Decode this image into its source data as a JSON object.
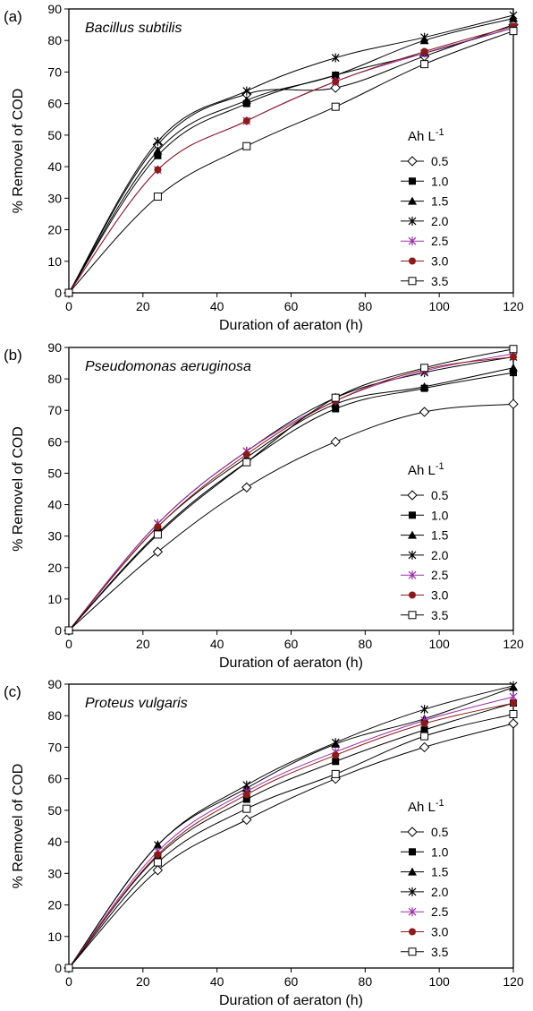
{
  "chart_data": [
    {
      "type": "line",
      "panel_label": "(a)",
      "subtitle": "Bacillus subtilis",
      "xlabel": "Duration of aeraton (h)",
      "ylabel": "% Removel of COD",
      "xlim": [
        0,
        120
      ],
      "ylim": [
        0,
        90
      ],
      "xticks": [
        "0",
        "20",
        "40",
        "60",
        "80",
        "100",
        "120"
      ],
      "yticks": [
        "0",
        "10",
        "20",
        "30",
        "40",
        "50",
        "60",
        "70",
        "80",
        "90"
      ],
      "legend_title": "Ah L",
      "legend_title_sup": "-1",
      "legend_position": "right",
      "x": [
        0,
        24,
        48,
        72,
        96,
        120
      ],
      "series": [
        {
          "name": "0.5",
          "marker": "diamond",
          "color": "#000000",
          "values": [
            0,
            47,
            63,
            65,
            75,
            85
          ]
        },
        {
          "name": "1.0",
          "marker": "square-filled",
          "color": "#000000",
          "values": [
            0,
            43.5,
            60,
            69,
            76,
            84
          ]
        },
        {
          "name": "1.5",
          "marker": "triangle",
          "color": "#000000",
          "values": [
            0,
            45,
            61,
            69,
            80,
            87
          ]
        },
        {
          "name": "2.0",
          "marker": "star",
          "color": "#000000",
          "values": [
            0,
            48,
            64,
            74.5,
            81,
            88
          ]
        },
        {
          "name": "2.5",
          "marker": "star",
          "color": "#9b30a8",
          "values": [
            0,
            39,
            54.5,
            67,
            76,
            84
          ]
        },
        {
          "name": "3.0",
          "marker": "circle",
          "color": "#8b1a1a",
          "values": [
            0,
            39,
            54.5,
            67,
            76.5,
            84.5
          ]
        },
        {
          "name": "3.5",
          "marker": "square-open",
          "color": "#000000",
          "values": [
            0,
            30.5,
            46.5,
            59,
            72.5,
            83
          ]
        }
      ]
    },
    {
      "type": "line",
      "panel_label": "(b)",
      "subtitle": "Pseudomonas aeruginosa",
      "xlabel": "Duration of aeraton (h)",
      "ylabel": "% Removel of COD",
      "xlim": [
        0,
        120
      ],
      "ylim": [
        0,
        90
      ],
      "xticks": [
        "0",
        "20",
        "40",
        "60",
        "80",
        "100",
        "120"
      ],
      "yticks": [
        "0",
        "10",
        "20",
        "30",
        "40",
        "50",
        "60",
        "70",
        "80",
        "90"
      ],
      "legend_title": "Ah L",
      "legend_title_sup": "-1",
      "legend_position": "right",
      "x": [
        0,
        24,
        48,
        72,
        96,
        120
      ],
      "series": [
        {
          "name": "0.5",
          "marker": "diamond",
          "color": "#000000",
          "values": [
            0,
            25,
            45.5,
            60,
            69.5,
            72
          ]
        },
        {
          "name": "1.0",
          "marker": "square-filled",
          "color": "#000000",
          "values": [
            0,
            31,
            53.5,
            70.5,
            77,
            82
          ]
        },
        {
          "name": "1.5",
          "marker": "triangle",
          "color": "#000000",
          "values": [
            0,
            33,
            55,
            72,
            77.5,
            83.5
          ]
        },
        {
          "name": "2.0",
          "marker": "star",
          "color": "#000000",
          "values": [
            0,
            34,
            57,
            74,
            82,
            87
          ]
        },
        {
          "name": "2.5",
          "marker": "star",
          "color": "#9b30a8",
          "values": [
            0,
            34,
            57,
            73,
            82.5,
            88
          ]
        },
        {
          "name": "3.0",
          "marker": "circle",
          "color": "#8b1a1a",
          "values": [
            0,
            33,
            56,
            73,
            83,
            87
          ]
        },
        {
          "name": "3.5",
          "marker": "square-open",
          "color": "#000000",
          "values": [
            0,
            30.5,
            53.5,
            74,
            83.5,
            89.5
          ]
        }
      ]
    },
    {
      "type": "line",
      "panel_label": "(c)",
      "subtitle": "Proteus vulgaris",
      "xlabel": "Duration of aeraton (h)",
      "ylabel": "% Removel of COD",
      "xlim": [
        0,
        120
      ],
      "ylim": [
        0,
        90
      ],
      "xticks": [
        "0",
        "20",
        "40",
        "60",
        "80",
        "100",
        "120"
      ],
      "yticks": [
        "0",
        "10",
        "20",
        "30",
        "40",
        "50",
        "60",
        "70",
        "80",
        "90"
      ],
      "legend_title": "Ah L",
      "legend_title_sup": "-1",
      "legend_position": "right",
      "x": [
        0,
        24,
        48,
        72,
        96,
        120
      ],
      "series": [
        {
          "name": "0.5",
          "marker": "diamond",
          "color": "#000000",
          "values": [
            0,
            31,
            47,
            60,
            70,
            77.5
          ]
        },
        {
          "name": "1.0",
          "marker": "square-filled",
          "color": "#000000",
          "values": [
            0,
            35.5,
            53.5,
            65.5,
            75.5,
            84
          ]
        },
        {
          "name": "1.5",
          "marker": "triangle",
          "color": "#000000",
          "values": [
            0,
            39,
            57,
            71,
            79,
            89
          ]
        },
        {
          "name": "2.0",
          "marker": "star",
          "color": "#000000",
          "values": [
            0,
            39,
            58,
            71.5,
            82,
            89.5
          ]
        },
        {
          "name": "2.5",
          "marker": "star",
          "color": "#9b30a8",
          "values": [
            0,
            37,
            56,
            68.5,
            78.5,
            86
          ]
        },
        {
          "name": "3.0",
          "marker": "circle",
          "color": "#8b1a1a",
          "values": [
            0,
            36,
            55,
            67.5,
            77.5,
            84
          ]
        },
        {
          "name": "3.5",
          "marker": "square-open",
          "color": "#000000",
          "values": [
            0,
            33.5,
            50.5,
            61.5,
            73.5,
            80.5
          ]
        }
      ]
    }
  ]
}
